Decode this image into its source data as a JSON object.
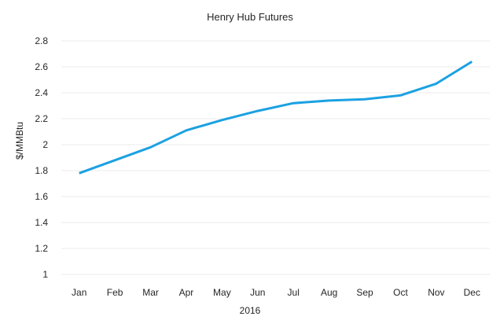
{
  "chart_data": {
    "type": "line",
    "title": "Henry Hub Futures",
    "xlabel": "2016",
    "ylabel": "$/MMBtu",
    "categories": [
      "Jan",
      "Feb",
      "Mar",
      "Apr",
      "May",
      "Jun",
      "Jul",
      "Aug",
      "Sep",
      "Oct",
      "Nov",
      "Dec"
    ],
    "series": [
      {
        "name": "Henry Hub Futures",
        "color": "#1BA1E2",
        "values": [
          1.78,
          1.88,
          1.98,
          2.11,
          2.19,
          2.26,
          2.32,
          2.34,
          2.35,
          2.38,
          2.47,
          2.64
        ]
      }
    ],
    "yticks": [
      "1",
      "1.2",
      "1.4",
      "1.6",
      "1.8",
      "2",
      "2.2",
      "2.4",
      "2.6",
      "2.8"
    ],
    "ylim": [
      1,
      2.8
    ],
    "grid": true,
    "gridline_color": "#F2F2F2",
    "legend": "none"
  }
}
